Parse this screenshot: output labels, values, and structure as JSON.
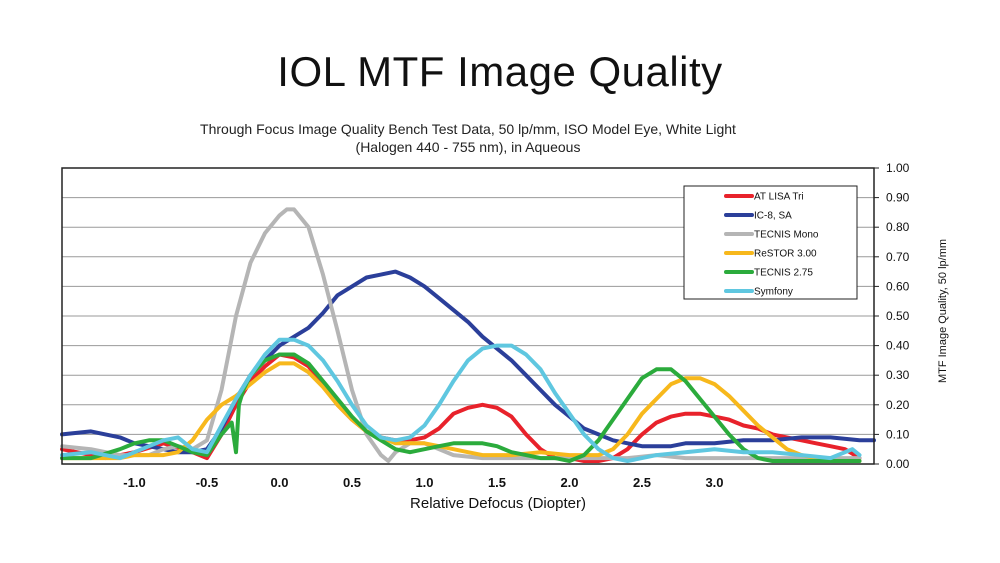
{
  "page": {
    "title": "IOL MTF Image Quality",
    "subtitle_line1": "Through Focus Image Quality Bench Test Data, 50 lp/mm, ISO Model Eye, White Light",
    "subtitle_line2": "(Halogen 440 - 755 nm), in Aqueous"
  },
  "chart_data": {
    "type": "line",
    "title": "IOL MTF Image Quality",
    "xlabel": "Relative Defocus (Diopter)",
    "ylabel": "MTF Image Quality, 50 lp/mm",
    "xlim": [
      -1.5,
      4.1
    ],
    "ylim": [
      0,
      1.0
    ],
    "x_ticks": [
      -1.0,
      -0.5,
      0.0,
      0.5,
      1.0,
      1.5,
      2.0,
      2.5,
      3.0
    ],
    "x_tick_labels": [
      "-1.0",
      "-0.5",
      "0.0",
      "0.5",
      "1.0",
      "1.5",
      "2.0",
      "2.5",
      "3.0"
    ],
    "y_ticks": [
      0,
      0.1,
      0.2,
      0.3,
      0.4,
      0.5,
      0.6,
      0.7,
      0.8,
      0.9,
      1.0
    ],
    "y_tick_labels": [
      "0.00",
      "0.10",
      "0.20",
      "0.30",
      "0.40",
      "0.50",
      "0.60",
      "0.70",
      "0.80",
      "0.90",
      "1.00"
    ],
    "y_axis_side": "right",
    "grid": true,
    "legend_position": "top-right",
    "series": [
      {
        "name": "AT LISA Tri",
        "color": "#e8222b",
        "x": [
          -1.5,
          -1.3,
          -1.2,
          -1.0,
          -0.8,
          -0.6,
          -0.5,
          -0.4,
          -0.3,
          -0.2,
          -0.1,
          0.0,
          0.1,
          0.2,
          0.3,
          0.4,
          0.5,
          0.6,
          0.7,
          0.8,
          0.9,
          1.0,
          1.1,
          1.2,
          1.3,
          1.4,
          1.5,
          1.6,
          1.7,
          1.8,
          1.9,
          2.0,
          2.1,
          2.2,
          2.3,
          2.4,
          2.5,
          2.6,
          2.7,
          2.8,
          2.9,
          3.0,
          3.1,
          3.2,
          3.3,
          3.4,
          3.5,
          3.6,
          3.7,
          3.8,
          3.9,
          4.0
        ],
        "y": [
          0.05,
          0.03,
          0.02,
          0.04,
          0.07,
          0.04,
          0.02,
          0.1,
          0.2,
          0.28,
          0.33,
          0.37,
          0.36,
          0.33,
          0.27,
          0.2,
          0.15,
          0.11,
          0.09,
          0.08,
          0.08,
          0.09,
          0.12,
          0.17,
          0.19,
          0.2,
          0.19,
          0.16,
          0.1,
          0.05,
          0.02,
          0.02,
          0.01,
          0.01,
          0.02,
          0.05,
          0.1,
          0.14,
          0.16,
          0.17,
          0.17,
          0.16,
          0.15,
          0.13,
          0.12,
          0.1,
          0.09,
          0.08,
          0.07,
          0.06,
          0.05,
          0.02
        ]
      },
      {
        "name": "IC-8, SA",
        "color": "#2b3f9a",
        "x": [
          -1.5,
          -1.3,
          -1.1,
          -1.0,
          -0.9,
          -0.8,
          -0.7,
          -0.6,
          -0.5,
          -0.4,
          -0.3,
          -0.2,
          -0.1,
          0.0,
          0.1,
          0.2,
          0.3,
          0.4,
          0.5,
          0.6,
          0.7,
          0.8,
          0.9,
          1.0,
          1.1,
          1.2,
          1.3,
          1.4,
          1.5,
          1.6,
          1.7,
          1.8,
          1.9,
          2.0,
          2.1,
          2.2,
          2.3,
          2.4,
          2.5,
          2.6,
          2.7,
          2.8,
          2.9,
          3.0,
          3.2,
          3.4,
          3.6,
          3.8,
          4.0,
          4.1
        ],
        "y": [
          0.1,
          0.11,
          0.09,
          0.07,
          0.06,
          0.05,
          0.04,
          0.04,
          0.05,
          0.12,
          0.22,
          0.3,
          0.35,
          0.4,
          0.43,
          0.46,
          0.51,
          0.57,
          0.6,
          0.63,
          0.64,
          0.65,
          0.63,
          0.6,
          0.56,
          0.52,
          0.48,
          0.43,
          0.39,
          0.35,
          0.3,
          0.25,
          0.2,
          0.16,
          0.12,
          0.1,
          0.08,
          0.07,
          0.06,
          0.06,
          0.06,
          0.07,
          0.07,
          0.07,
          0.08,
          0.08,
          0.09,
          0.09,
          0.08,
          0.08
        ]
      },
      {
        "name": "TECNIS Mono",
        "color": "#b5b5b5",
        "x": [
          -1.5,
          -1.3,
          -1.1,
          -0.9,
          -0.8,
          -0.7,
          -0.6,
          -0.5,
          -0.4,
          -0.3,
          -0.2,
          -0.1,
          0.0,
          0.05,
          0.1,
          0.2,
          0.3,
          0.4,
          0.5,
          0.6,
          0.7,
          0.75,
          0.8,
          0.9,
          1.0,
          1.1,
          1.2,
          1.4,
          1.6,
          1.8,
          2.0,
          2.2,
          2.4,
          2.6,
          2.8,
          3.0,
          3.2,
          3.4,
          3.6,
          3.8,
          4.0
        ],
        "y": [
          0.06,
          0.05,
          0.03,
          0.03,
          0.05,
          0.06,
          0.05,
          0.08,
          0.25,
          0.5,
          0.68,
          0.78,
          0.84,
          0.86,
          0.86,
          0.8,
          0.64,
          0.45,
          0.25,
          0.1,
          0.03,
          0.01,
          0.04,
          0.07,
          0.07,
          0.05,
          0.03,
          0.02,
          0.02,
          0.02,
          0.02,
          0.02,
          0.02,
          0.03,
          0.02,
          0.02,
          0.02,
          0.02,
          0.02,
          0.02,
          0.02
        ]
      },
      {
        "name": "ReSTOR 3.00",
        "color": "#f7b81c",
        "x": [
          -1.5,
          -1.3,
          -1.1,
          -1.0,
          -0.9,
          -0.8,
          -0.7,
          -0.6,
          -0.5,
          -0.4,
          -0.3,
          -0.2,
          -0.1,
          0.0,
          0.1,
          0.2,
          0.3,
          0.4,
          0.5,
          0.6,
          0.7,
          0.8,
          0.9,
          1.0,
          1.1,
          1.2,
          1.3,
          1.4,
          1.5,
          1.6,
          1.8,
          2.0,
          2.2,
          2.3,
          2.4,
          2.5,
          2.6,
          2.7,
          2.8,
          2.9,
          3.0,
          3.1,
          3.2,
          3.3,
          3.4,
          3.5,
          3.6,
          3.8,
          4.0
        ],
        "y": [
          0.02,
          0.02,
          0.02,
          0.03,
          0.03,
          0.03,
          0.04,
          0.08,
          0.15,
          0.2,
          0.23,
          0.27,
          0.31,
          0.34,
          0.34,
          0.31,
          0.26,
          0.2,
          0.15,
          0.11,
          0.09,
          0.07,
          0.07,
          0.07,
          0.06,
          0.05,
          0.04,
          0.03,
          0.03,
          0.03,
          0.04,
          0.03,
          0.03,
          0.05,
          0.1,
          0.17,
          0.22,
          0.27,
          0.29,
          0.29,
          0.27,
          0.23,
          0.18,
          0.13,
          0.09,
          0.05,
          0.03,
          0.01,
          0.01
        ]
      },
      {
        "name": "TECNIS 2.75",
        "color": "#2bab3c",
        "x": [
          -1.5,
          -1.3,
          -1.1,
          -1.0,
          -0.9,
          -0.8,
          -0.7,
          -0.6,
          -0.5,
          -0.4,
          -0.33,
          -0.3,
          -0.28,
          -0.25,
          -0.2,
          -0.1,
          0.0,
          0.1,
          0.2,
          0.3,
          0.4,
          0.5,
          0.6,
          0.7,
          0.8,
          0.9,
          1.0,
          1.1,
          1.2,
          1.3,
          1.4,
          1.5,
          1.6,
          1.7,
          1.8,
          1.9,
          2.0,
          2.1,
          2.2,
          2.3,
          2.4,
          2.5,
          2.6,
          2.7,
          2.8,
          2.9,
          3.0,
          3.1,
          3.2,
          3.3,
          3.4,
          3.6,
          3.8,
          4.0
        ],
        "y": [
          0.02,
          0.02,
          0.05,
          0.07,
          0.08,
          0.08,
          0.06,
          0.04,
          0.03,
          0.1,
          0.14,
          0.04,
          0.2,
          0.25,
          0.3,
          0.35,
          0.37,
          0.37,
          0.34,
          0.28,
          0.22,
          0.16,
          0.11,
          0.08,
          0.05,
          0.04,
          0.05,
          0.06,
          0.07,
          0.07,
          0.07,
          0.06,
          0.04,
          0.03,
          0.02,
          0.02,
          0.01,
          0.03,
          0.08,
          0.15,
          0.22,
          0.29,
          0.32,
          0.32,
          0.28,
          0.22,
          0.16,
          0.1,
          0.05,
          0.02,
          0.01,
          0.01,
          0.01,
          0.01
        ]
      },
      {
        "name": "Symfony",
        "color": "#5fc7e0",
        "x": [
          -1.5,
          -1.3,
          -1.1,
          -1.0,
          -0.9,
          -0.8,
          -0.7,
          -0.6,
          -0.5,
          -0.4,
          -0.3,
          -0.2,
          -0.1,
          0.0,
          0.1,
          0.2,
          0.3,
          0.4,
          0.5,
          0.6,
          0.7,
          0.8,
          0.9,
          1.0,
          1.1,
          1.2,
          1.3,
          1.4,
          1.5,
          1.6,
          1.7,
          1.8,
          1.9,
          2.0,
          2.1,
          2.2,
          2.3,
          2.4,
          2.5,
          2.6,
          2.8,
          3.0,
          3.2,
          3.4,
          3.6,
          3.8,
          3.95,
          4.0
        ],
        "y": [
          0.03,
          0.04,
          0.02,
          0.04,
          0.06,
          0.08,
          0.09,
          0.05,
          0.04,
          0.13,
          0.22,
          0.3,
          0.37,
          0.42,
          0.42,
          0.4,
          0.35,
          0.28,
          0.2,
          0.13,
          0.09,
          0.08,
          0.09,
          0.13,
          0.2,
          0.28,
          0.35,
          0.39,
          0.4,
          0.4,
          0.37,
          0.32,
          0.24,
          0.17,
          0.1,
          0.05,
          0.02,
          0.01,
          0.02,
          0.03,
          0.04,
          0.05,
          0.04,
          0.04,
          0.03,
          0.02,
          0.05,
          0.03
        ]
      }
    ]
  }
}
